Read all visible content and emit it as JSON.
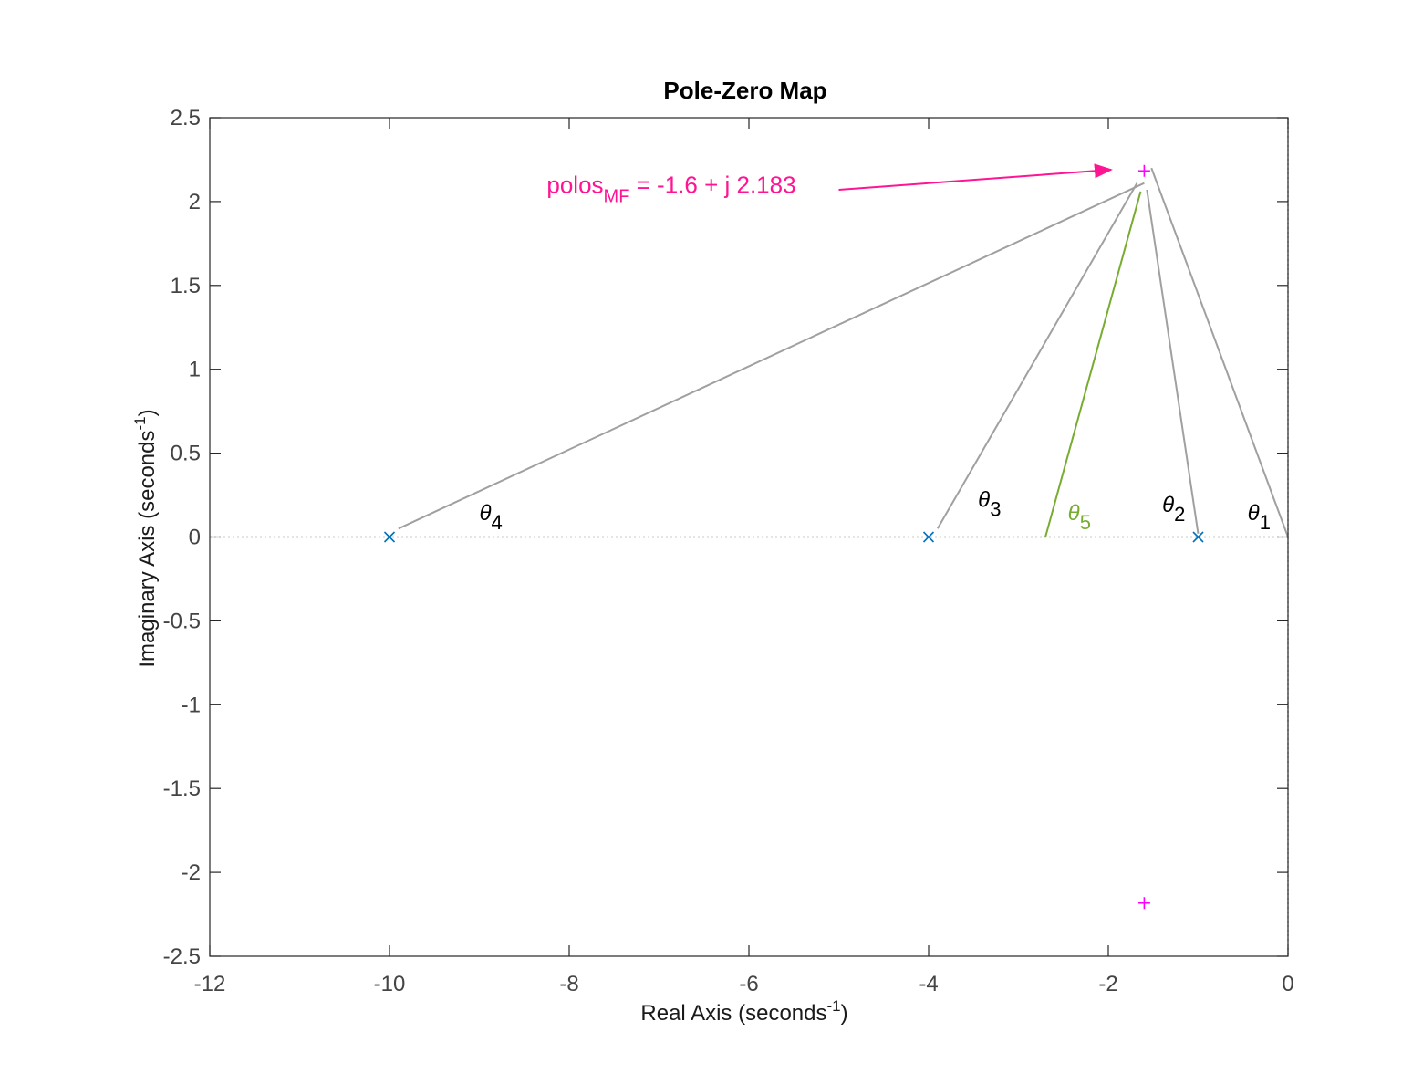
{
  "chart_data": {
    "type": "scatter",
    "title": "Pole-Zero Map",
    "xlabel": "Real Axis (seconds",
    "xlabel_sup": "-1",
    "xlabel_close": ")",
    "ylabel": "Imaginary Axis (seconds",
    "ylabel_sup": "-1",
    "ylabel_close": ")",
    "xlim": [
      -12,
      0
    ],
    "ylim": [
      -2.5,
      2.5
    ],
    "xticks": [
      -12,
      -10,
      -8,
      -6,
      -4,
      -2,
      0
    ],
    "xtick_labels": [
      "-12",
      "-10",
      "-8",
      "-6",
      "-4",
      "-2",
      "0"
    ],
    "yticks": [
      2.5,
      2,
      1.5,
      1,
      0.5,
      0,
      -0.5,
      -1,
      -1.5,
      -2,
      -2.5
    ],
    "ytick_labels": [
      "2.5",
      "2",
      "1.5",
      "1",
      "0.5",
      "0",
      "-0.5",
      "-1",
      "-1.5",
      "-2",
      "-2.5"
    ],
    "grid": false,
    "series": [
      {
        "marker": "x",
        "color": "#0072BD",
        "points": [
          [
            -10,
            0
          ],
          [
            -4,
            0
          ],
          [
            -1,
            0
          ]
        ]
      },
      {
        "marker": "+",
        "color": "#FF00FF",
        "points": [
          [
            -1.6,
            2.183
          ],
          [
            -1.6,
            -2.183
          ]
        ]
      }
    ],
    "angle_lines": [
      {
        "from": [
          -9.9,
          0.05
        ],
        "to": [
          -1.6,
          2.11
        ],
        "color": "#A0A0A0"
      },
      {
        "from": [
          -3.9,
          0.05
        ],
        "to": [
          -1.68,
          2.11
        ],
        "color": "#A0A0A0"
      },
      {
        "from": [
          -2.7,
          0.0
        ],
        "to": [
          -1.64,
          2.06
        ],
        "color": "#77AC30"
      },
      {
        "from": [
          -1.0,
          0.02
        ],
        "to": [
          -1.57,
          2.07
        ],
        "color": "#A0A0A0"
      },
      {
        "from": [
          0.0,
          0.0
        ],
        "to": [
          -1.52,
          2.2
        ],
        "color": "#A0A0A0"
      }
    ],
    "angle_labels": [
      {
        "symbol": "θ",
        "sub": "4",
        "at": [
          -9.0,
          0.1
        ],
        "color": "#000000"
      },
      {
        "symbol": "θ",
        "sub": "3",
        "at": [
          -3.45,
          0.18
        ],
        "color": "#000000"
      },
      {
        "symbol": "θ",
        "sub": "5",
        "at": [
          -2.45,
          0.1
        ],
        "color": "#77AC30"
      },
      {
        "symbol": "θ",
        "sub": "2",
        "at": [
          -1.4,
          0.15
        ],
        "color": "#000000"
      },
      {
        "symbol": "θ",
        "sub": "1",
        "at": [
          -0.45,
          0.1
        ],
        "color": "#000000"
      }
    ],
    "annotation": {
      "text_main": "polos",
      "text_sub": "MF",
      "text_rest": " = -1.6 + j 2.183",
      "color": "#FF1493",
      "text_at": [
        -8.25,
        2.05
      ],
      "arrow_from": [
        -5.0,
        2.07
      ],
      "arrow_to": [
        -1.97,
        2.19
      ]
    }
  }
}
